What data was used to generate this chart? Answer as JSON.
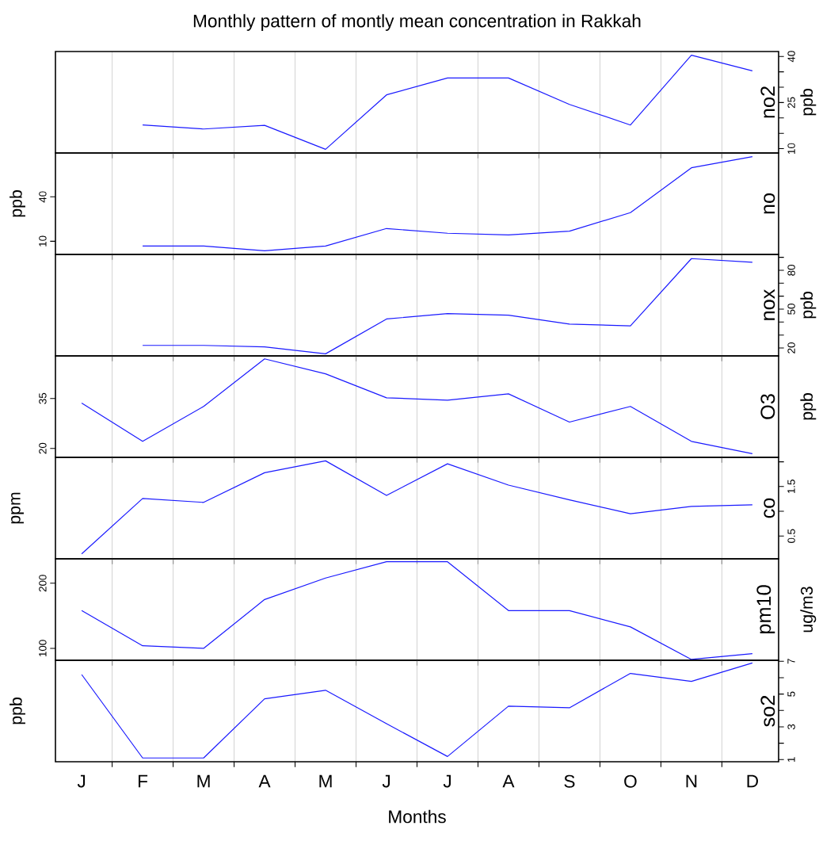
{
  "chart_data": [
    {
      "type": "line",
      "title": "no2",
      "annotations": [
        "Monthly pattern of montly mean concentration in Rakkah"
      ],
      "ylabel": "ppb",
      "categories": [
        null,
        null,
        null,
        null,
        null,
        null,
        null,
        null,
        null,
        null,
        null,
        null
      ],
      "series": [
        {
          "color": "#1a1aff",
          "values": [
            null,
            17.7,
            16.4,
            17.6,
            9.8,
            27.5,
            33.0,
            33.0,
            24.4,
            17.7,
            40.4,
            35.3
          ]
        }
      ],
      "ylim": [
        8.6,
        41.6
      ],
      "yticks": [
        10,
        {
          "value": 15,
          "label": null
        },
        {
          "value": 20,
          "label": null
        },
        25,
        {
          "value": 30,
          "label": null
        },
        {
          "value": 35,
          "label": null
        },
        40
      ],
      "grid": "x"
    },
    {
      "type": "line",
      "title": "no",
      "ylabel": "ppb",
      "categories": [
        null,
        null,
        null,
        null,
        null,
        null,
        null,
        null,
        null,
        null,
        null,
        null
      ],
      "series": [
        {
          "color": "#1a1aff",
          "values": [
            null,
            6.8,
            6.8,
            3.6,
            6.8,
            18.6,
            15.4,
            14.3,
            16.8,
            29.3,
            59.6,
            67.1
          ]
        }
      ],
      "ylim": [
        1.1,
        69.6
      ],
      "yticks": [
        10,
        40
      ],
      "grid": "x"
    },
    {
      "type": "line",
      "title": "nox",
      "ylabel": "ppb",
      "categories": [
        null,
        null,
        null,
        null,
        null,
        null,
        null,
        null,
        null,
        null,
        null,
        null
      ],
      "series": [
        {
          "color": "#1a1aff",
          "values": [
            null,
            22.0,
            22.0,
            20.8,
            15.5,
            42.4,
            46.5,
            45.3,
            38.4,
            37.1,
            89.0,
            86.1
          ]
        }
      ],
      "ylim": [
        13.9,
        92.2
      ],
      "yticks": [
        20,
        {
          "value": 30,
          "label": null
        },
        {
          "value": 40,
          "label": null
        },
        50,
        {
          "value": 60,
          "label": null
        },
        {
          "value": 70,
          "label": null
        },
        80,
        {
          "value": 90,
          "label": null
        }
      ],
      "grid": "x"
    },
    {
      "type": "line",
      "title": "O3",
      "ylabel": "ppb",
      "categories": [
        null,
        null,
        null,
        null,
        null,
        null,
        null,
        null,
        null,
        null,
        null,
        null
      ],
      "series": [
        {
          "color": "#1a1aff",
          "values": [
            33.6,
            22.1,
            32.6,
            46.9,
            42.4,
            35.2,
            34.5,
            36.4,
            27.9,
            32.6,
            22.1,
            18.4
          ]
        }
      ],
      "ylim": [
        17.3,
        47.8
      ],
      "yticks": [
        20,
        35
      ],
      "grid": "x"
    },
    {
      "type": "line",
      "title": "co",
      "ylabel": "ppm",
      "categories": [
        null,
        null,
        null,
        null,
        null,
        null,
        null,
        null,
        null,
        null,
        null,
        null
      ],
      "series": [
        {
          "color": "#1a1aff",
          "values": [
            0.14,
            1.26,
            1.18,
            1.78,
            2.02,
            1.32,
            1.96,
            1.53,
            1.23,
            0.95,
            1.1,
            1.13
          ]
        }
      ],
      "ylim": [
        0.04,
        2.09
      ],
      "yticks": [
        0.5,
        {
          "value": 1.0,
          "label": null
        },
        1.5,
        {
          "value": 2.0,
          "label": null
        }
      ],
      "grid": "x"
    },
    {
      "type": "line",
      "title": "pm10",
      "ylabel": "ug/m3",
      "categories": [
        null,
        null,
        null,
        null,
        null,
        null,
        null,
        null,
        null,
        null,
        null,
        null
      ],
      "series": [
        {
          "color": "#1a1aff",
          "values": [
            158,
            104,
            100,
            175,
            208,
            233,
            233,
            158,
            158,
            133,
            83,
            92
          ]
        }
      ],
      "ylim": [
        81.7,
        237.5
      ],
      "yticks": [
        100,
        200
      ],
      "grid": "x"
    },
    {
      "type": "line",
      "title": "so2",
      "ylabel": "ppb",
      "xlabel": "Months",
      "categories": [
        "J",
        "F",
        "M",
        "A",
        "M",
        "J",
        "J",
        "A",
        "S",
        "O",
        "N",
        "D"
      ],
      "series": [
        {
          "color": "#1a1aff",
          "values": [
            6.19,
            1.1,
            1.1,
            4.71,
            5.23,
            3.19,
            1.19,
            4.26,
            4.16,
            6.26,
            5.77,
            6.9
          ]
        }
      ],
      "ylim": [
        0.87,
        7.06
      ],
      "yticks": [
        1,
        {
          "value": 2,
          "label": null
        },
        3,
        {
          "value": 4,
          "label": null
        },
        5,
        {
          "value": 6,
          "label": null
        },
        7
      ],
      "grid": "x"
    }
  ]
}
